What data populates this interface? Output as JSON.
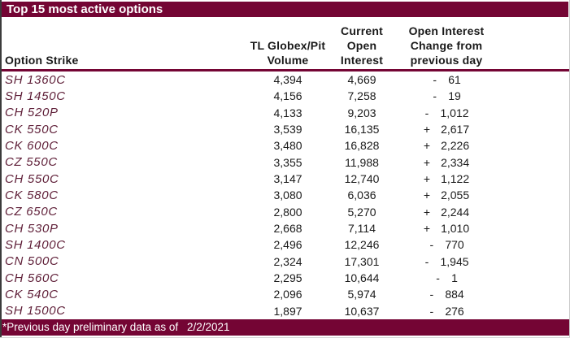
{
  "title": "Top 15 most active options",
  "columns": {
    "strike": {
      "label": "Option Strike"
    },
    "volume": {
      "lines": [
        "TL Globex/Pit",
        "Volume"
      ]
    },
    "open_interest": {
      "lines": [
        "Current",
        "Open",
        "Interest"
      ]
    },
    "change": {
      "lines": [
        "Open Interest",
        "Change from",
        "previous day"
      ]
    }
  },
  "rows": [
    {
      "strike": "SH 1360C",
      "volume": "4,394",
      "open_interest": "4,669",
      "change_sign": "-",
      "change_value": "61"
    },
    {
      "strike": "SH 1450C",
      "volume": "4,156",
      "open_interest": "7,258",
      "change_sign": "-",
      "change_value": "19"
    },
    {
      "strike": "CH 520P",
      "volume": "4,133",
      "open_interest": "9,203",
      "change_sign": "-",
      "change_value": "1,012"
    },
    {
      "strike": "CK 550C",
      "volume": "3,539",
      "open_interest": "16,135",
      "change_sign": "+",
      "change_value": "2,617"
    },
    {
      "strike": "CK 600C",
      "volume": "3,480",
      "open_interest": "16,828",
      "change_sign": "+",
      "change_value": "2,226"
    },
    {
      "strike": "CZ 550C",
      "volume": "3,355",
      "open_interest": "11,988",
      "change_sign": "+",
      "change_value": "2,334"
    },
    {
      "strike": "CH 550C",
      "volume": "3,147",
      "open_interest": "12,740",
      "change_sign": "+",
      "change_value": "1,122"
    },
    {
      "strike": "CK 580C",
      "volume": "3,080",
      "open_interest": "6,036",
      "change_sign": "+",
      "change_value": "2,055"
    },
    {
      "strike": "CZ 650C",
      "volume": "2,800",
      "open_interest": "5,270",
      "change_sign": "+",
      "change_value": "2,244"
    },
    {
      "strike": "CH 530P",
      "volume": "2,668",
      "open_interest": "7,114",
      "change_sign": "+",
      "change_value": "1,010"
    },
    {
      "strike": "SH 1400C",
      "volume": "2,496",
      "open_interest": "12,246",
      "change_sign": "-",
      "change_value": "770"
    },
    {
      "strike": "CN 500C",
      "volume": "2,324",
      "open_interest": "17,301",
      "change_sign": "-",
      "change_value": "1,945"
    },
    {
      "strike": "CH 560C",
      "volume": "2,295",
      "open_interest": "10,644",
      "change_sign": "-",
      "change_value": "1"
    },
    {
      "strike": "CK 540C",
      "volume": "2,096",
      "open_interest": "5,974",
      "change_sign": "-",
      "change_value": "884"
    },
    {
      "strike": "SH 1500C",
      "volume": "1,897",
      "open_interest": "10,637",
      "change_sign": "-",
      "change_value": "276"
    }
  ],
  "footer": {
    "note": "*Previous day preliminary data as of",
    "date": "2/2/2021"
  },
  "colors": {
    "maroon_bar": "#740534",
    "strike_text": "#5f1f38",
    "body_text": "#1a1a1a"
  }
}
